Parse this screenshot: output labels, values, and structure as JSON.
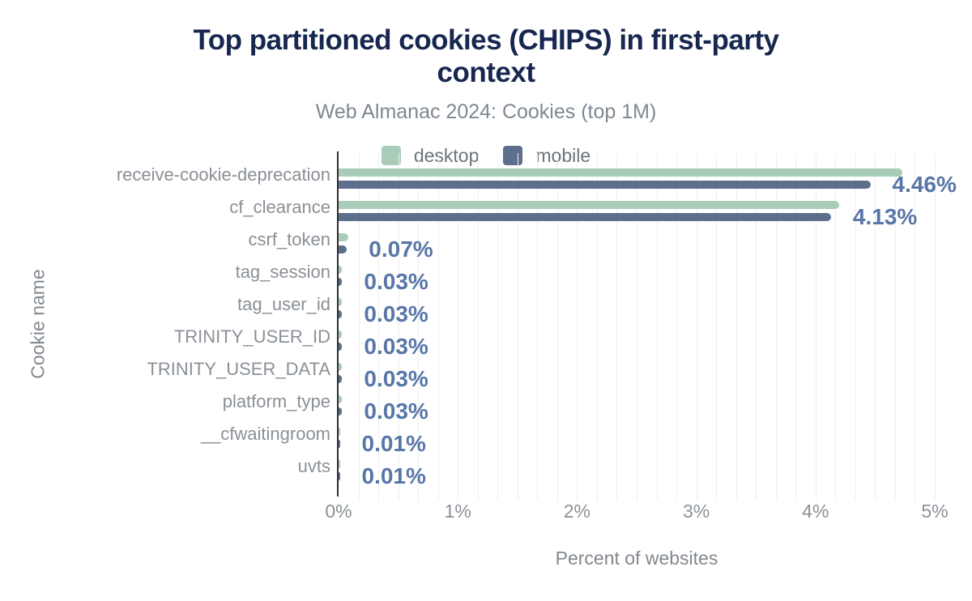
{
  "header": {
    "title": "Top partitioned cookies (CHIPS) in first-party context",
    "title_line1": "Top partitioned cookies (CHIPS) in first-party",
    "title_line2": "context",
    "subtitle": "Web Almanac 2024: Cookies (top 1M)"
  },
  "colors": {
    "title": "#17274f",
    "subtitle": "#7e8893",
    "desktop": "#a8ccb7",
    "mobile": "#5e6f8d",
    "value_label": "#5876a8",
    "category_label": "#8a9097",
    "tick_label": "#8b9196",
    "axis_line": "#2f2f2f",
    "gridline": "#edefef"
  },
  "chart_data": {
    "type": "bar",
    "orientation": "horizontal",
    "title": "Top partitioned cookies (CHIPS) in first-party context",
    "subtitle": "Web Almanac 2024: Cookies (top 1M)",
    "xlabel": "Percent of websites",
    "ylabel": "Cookie name",
    "xlim": [
      0,
      5
    ],
    "x_tick_labels": [
      "0%",
      "1%",
      "2%",
      "3%",
      "4%",
      "5%"
    ],
    "grid": "vertical minor gridlines, 6 per 1%",
    "legend_position": "top-center",
    "categories": [
      "receive-cookie-deprecation",
      "cf_clearance",
      "csrf_token",
      "tag_session",
      "tag_user_id",
      "TRINITY_USER_ID",
      "TRINITY_USER_DATA",
      "platform_type",
      "__cfwaitingroom",
      "uvts"
    ],
    "series": [
      {
        "name": "desktop",
        "color": "#a8ccb7",
        "values": [
          4.73,
          4.2,
          0.08,
          0.03,
          0.03,
          0.03,
          0.03,
          0.03,
          0.01,
          0.01
        ]
      },
      {
        "name": "mobile",
        "color": "#5e6f8d",
        "values": [
          4.46,
          4.13,
          0.07,
          0.03,
          0.03,
          0.03,
          0.03,
          0.03,
          0.01,
          0.01
        ]
      }
    ],
    "value_labels": [
      "4.46%",
      "4.13%",
      "0.07%",
      "0.03%",
      "0.03%",
      "0.03%",
      "0.03%",
      "0.03%",
      "0.01%",
      "0.01%"
    ]
  }
}
